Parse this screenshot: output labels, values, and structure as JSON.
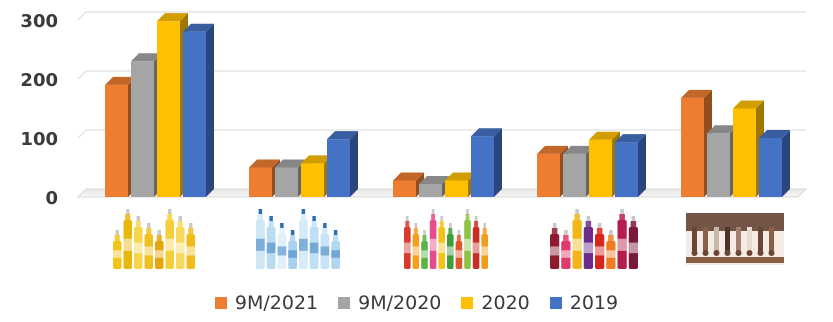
{
  "chart_data": {
    "type": "bar",
    "bar_style": "3d",
    "categories": [
      "cooking-oil-bottles",
      "water-bottles",
      "soft-drink-bottles",
      "juice-bottles",
      "production-line"
    ],
    "category_icons": [
      "cooking-oil-bottles-icon",
      "water-bottles-icon",
      "soft-drink-bottles-icon",
      "juice-bottles-icon",
      "production-line-icon"
    ],
    "series": [
      {
        "name": "9M/2021",
        "color": "#ED7D31",
        "values": [
          190,
          50,
          28,
          73,
          168
        ]
      },
      {
        "name": "9M/2020",
        "color": "#A5A5A5",
        "values": [
          230,
          50,
          22,
          73,
          108
        ]
      },
      {
        "name": "2020",
        "color": "#FFC000",
        "values": [
          298,
          57,
          28,
          97,
          150
        ]
      },
      {
        "name": "2019",
        "color": "#4472C4",
        "values": [
          280,
          98,
          103,
          93,
          100
        ]
      }
    ],
    "y_ticks": [
      "0",
      "100",
      "200",
      "300"
    ],
    "ylim": [
      0,
      300
    ],
    "title": "",
    "xlabel": "",
    "ylabel": "",
    "grid": true,
    "legend_position": "bottom"
  }
}
